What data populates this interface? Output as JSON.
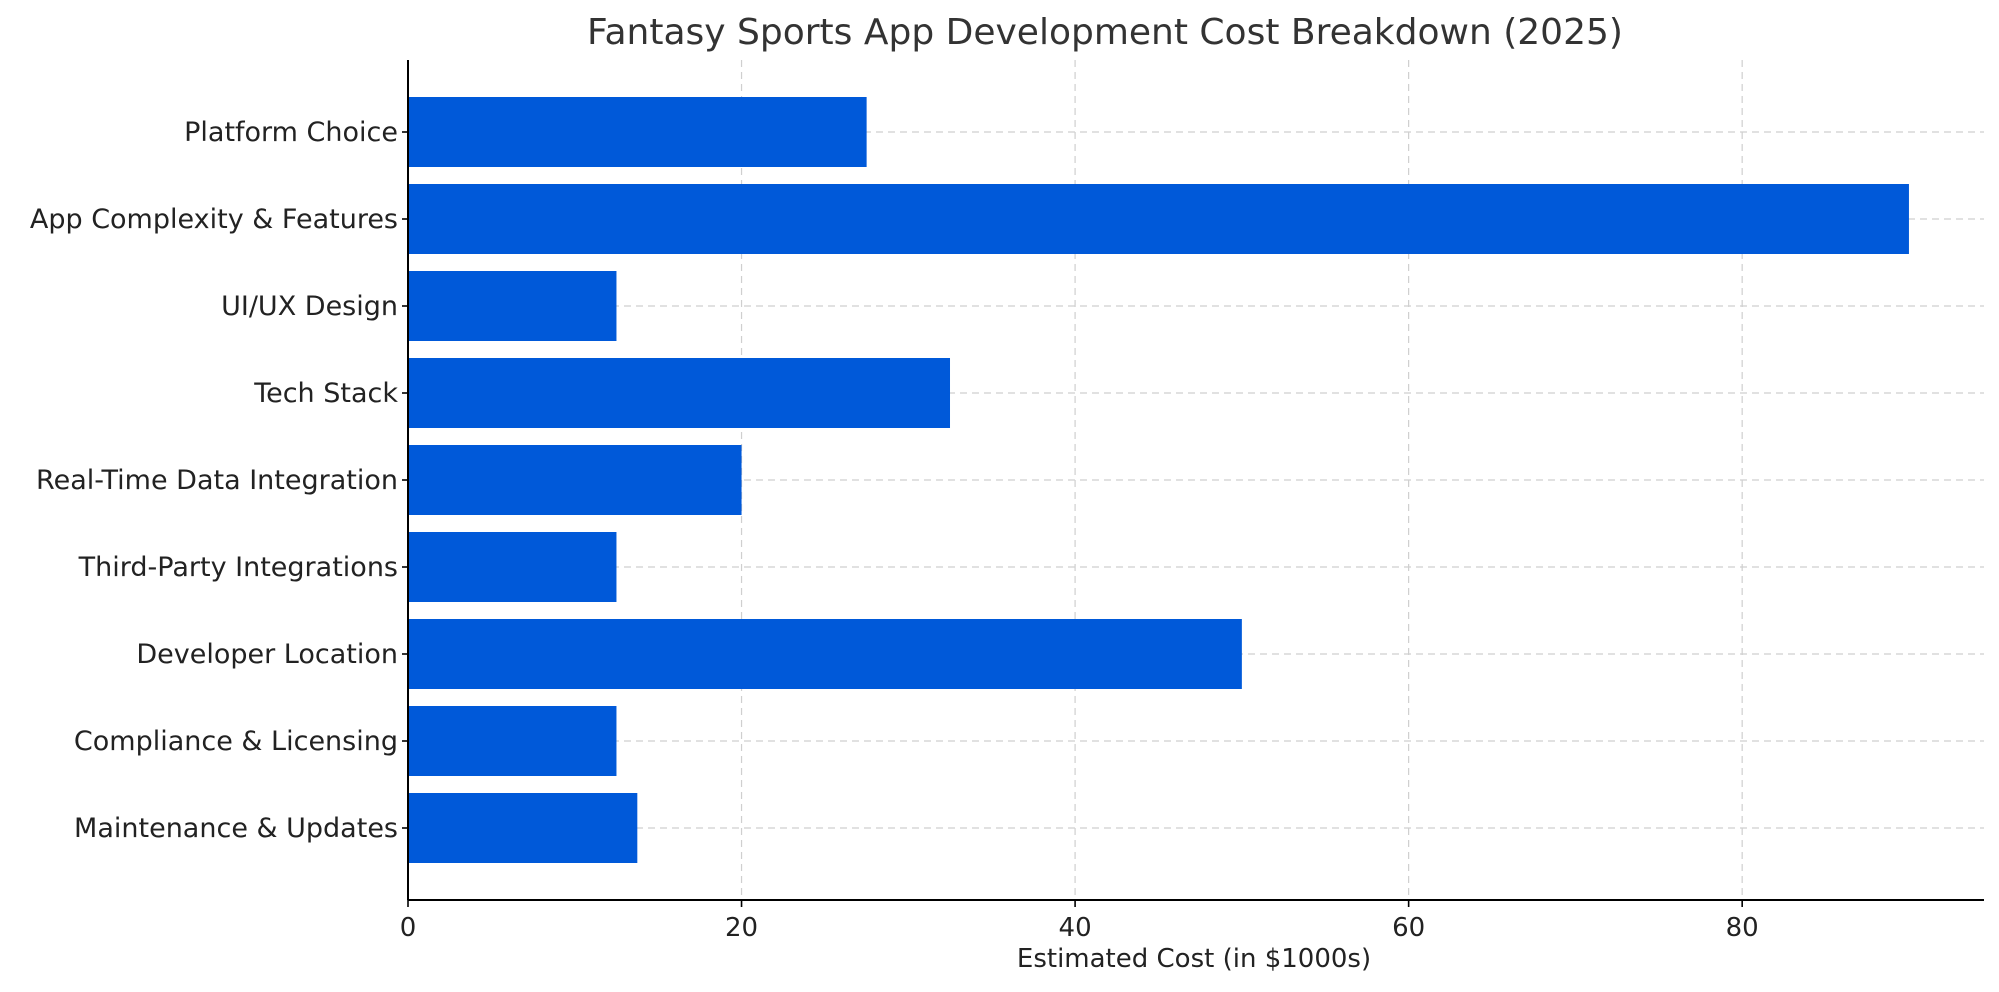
{
  "chart_data": {
    "type": "bar",
    "orientation": "horizontal",
    "title": "Fantasy Sports App Development Cost Breakdown (2025)",
    "xlabel": "Estimated Cost (in $1000s)",
    "ylabel": "",
    "categories": [
      "Platform Choice",
      "App Complexity & Features",
      "UI/UX Design",
      "Tech Stack",
      "Real-Time Data Integration",
      "Third-Party Integrations",
      "Developer Location",
      "Compliance & Licensing",
      "Maintenance & Updates"
    ],
    "values": [
      27.5,
      90,
      12.5,
      32.5,
      20,
      12.5,
      50,
      12.5,
      13.75
    ],
    "xlim": [
      0,
      94.5
    ],
    "xticks": [
      0,
      20,
      40,
      60,
      80
    ],
    "xtick_labels": [
      "0",
      "20",
      "40",
      "60",
      "80"
    ],
    "grid": true,
    "bar_color": "#0059d9",
    "grid_color": "#cfcfcf"
  }
}
